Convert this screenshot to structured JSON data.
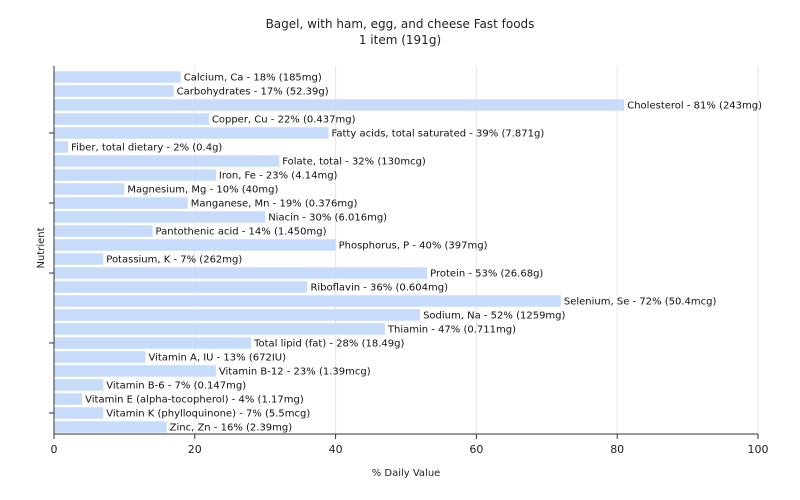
{
  "chart_data": {
    "type": "bar",
    "orientation": "horizontal",
    "title": "Bagel, with ham, egg, and cheese Fast foods",
    "subtitle": "1 item (191g)",
    "xlabel": "% Daily Value",
    "ylabel": "Nutrient",
    "xlim": [
      0,
      100
    ],
    "xticks": [
      "0",
      "20",
      "40",
      "60",
      "80",
      "100"
    ],
    "grid": true,
    "bar_color": "#c6dcfa",
    "categories": [
      "Calcium, Ca",
      "Carbohydrates",
      "Cholesterol",
      "Copper, Cu",
      "Fatty acids, total saturated",
      "Fiber, total dietary",
      "Folate, total",
      "Iron, Fe",
      "Magnesium, Mg",
      "Manganese, Mn",
      "Niacin",
      "Pantothenic acid",
      "Phosphorus, P",
      "Potassium, K",
      "Protein",
      "Riboflavin",
      "Selenium, Se",
      "Sodium, Na",
      "Thiamin",
      "Total lipid (fat)",
      "Vitamin A, IU",
      "Vitamin B-12",
      "Vitamin B-6",
      "Vitamin E (alpha-tocopherol)",
      "Vitamin K (phylloquinone)",
      "Zinc, Zn"
    ],
    "values": [
      18,
      17,
      81,
      22,
      39,
      2,
      32,
      23,
      10,
      19,
      30,
      14,
      40,
      7,
      53,
      36,
      72,
      52,
      47,
      28,
      13,
      23,
      7,
      4,
      7,
      16
    ],
    "labels": [
      "Calcium, Ca - 18% (185mg)",
      "Carbohydrates - 17% (52.39g)",
      "Cholesterol - 81% (243mg)",
      "Copper, Cu - 22% (0.437mg)",
      "Fatty acids, total saturated - 39% (7.871g)",
      "Fiber, total dietary - 2% (0.4g)",
      "Folate, total - 32% (130mcg)",
      "Iron, Fe - 23% (4.14mg)",
      "Magnesium, Mg - 10% (40mg)",
      "Manganese, Mn - 19% (0.376mg)",
      "Niacin - 30% (6.016mg)",
      "Pantothenic acid - 14% (1.450mg)",
      "Phosphorus, P - 40% (397mg)",
      "Potassium, K - 7% (262mg)",
      "Protein - 53% (26.68g)",
      "Riboflavin - 36% (0.604mg)",
      "Selenium, Se - 72% (50.4mcg)",
      "Sodium, Na - 52% (1259mg)",
      "Thiamin - 47% (0.711mg)",
      "Total lipid (fat) - 28% (18.49g)",
      "Vitamin A, IU - 13% (672IU)",
      "Vitamin B-12 - 23% (1.39mcg)",
      "Vitamin B-6 - 7% (0.147mg)",
      "Vitamin E (alpha-tocopherol) - 4% (1.17mg)",
      "Vitamin K (phylloquinone) - 7% (5.5mcg)",
      "Zinc, Zn - 16% (2.39mg)"
    ]
  }
}
